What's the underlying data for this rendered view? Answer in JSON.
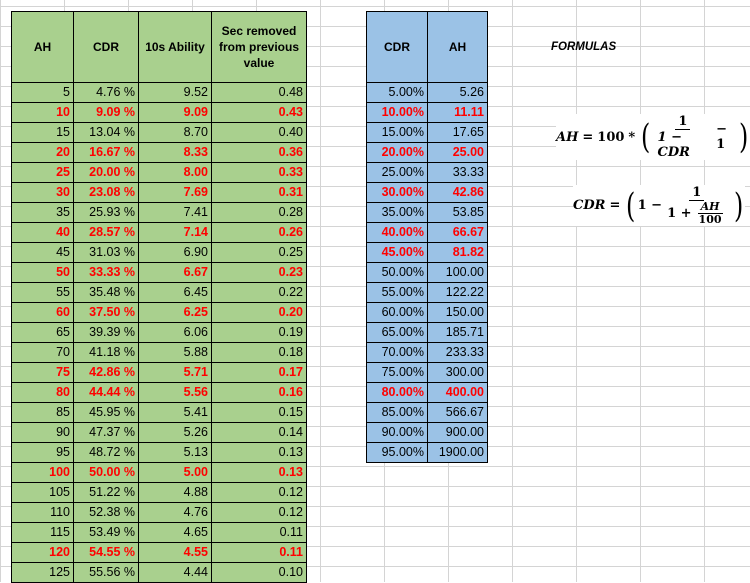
{
  "left_table": {
    "headers": [
      "AH",
      "CDR",
      "10s Ability",
      "Sec removed from previous value"
    ],
    "rows": [
      {
        "ah": "5",
        "cdr": "4.76 %",
        "ability": "9.52",
        "sec": "0.48",
        "highlight": false
      },
      {
        "ah": "10",
        "cdr": "9.09 %",
        "ability": "9.09",
        "sec": "0.43",
        "highlight": true
      },
      {
        "ah": "15",
        "cdr": "13.04 %",
        "ability": "8.70",
        "sec": "0.40",
        "highlight": false
      },
      {
        "ah": "20",
        "cdr": "16.67 %",
        "ability": "8.33",
        "sec": "0.36",
        "highlight": true
      },
      {
        "ah": "25",
        "cdr": "20.00 %",
        "ability": "8.00",
        "sec": "0.33",
        "highlight": true
      },
      {
        "ah": "30",
        "cdr": "23.08 %",
        "ability": "7.69",
        "sec": "0.31",
        "highlight": true
      },
      {
        "ah": "35",
        "cdr": "25.93 %",
        "ability": "7.41",
        "sec": "0.28",
        "highlight": false
      },
      {
        "ah": "40",
        "cdr": "28.57 %",
        "ability": "7.14",
        "sec": "0.26",
        "highlight": true
      },
      {
        "ah": "45",
        "cdr": "31.03 %",
        "ability": "6.90",
        "sec": "0.25",
        "highlight": false
      },
      {
        "ah": "50",
        "cdr": "33.33 %",
        "ability": "6.67",
        "sec": "0.23",
        "highlight": true
      },
      {
        "ah": "55",
        "cdr": "35.48 %",
        "ability": "6.45",
        "sec": "0.22",
        "highlight": false
      },
      {
        "ah": "60",
        "cdr": "37.50 %",
        "ability": "6.25",
        "sec": "0.20",
        "highlight": true
      },
      {
        "ah": "65",
        "cdr": "39.39 %",
        "ability": "6.06",
        "sec": "0.19",
        "highlight": false
      },
      {
        "ah": "70",
        "cdr": "41.18 %",
        "ability": "5.88",
        "sec": "0.18",
        "highlight": false
      },
      {
        "ah": "75",
        "cdr": "42.86 %",
        "ability": "5.71",
        "sec": "0.17",
        "highlight": true
      },
      {
        "ah": "80",
        "cdr": "44.44 %",
        "ability": "5.56",
        "sec": "0.16",
        "highlight": true
      },
      {
        "ah": "85",
        "cdr": "45.95 %",
        "ability": "5.41",
        "sec": "0.15",
        "highlight": false
      },
      {
        "ah": "90",
        "cdr": "47.37 %",
        "ability": "5.26",
        "sec": "0.14",
        "highlight": false
      },
      {
        "ah": "95",
        "cdr": "48.72 %",
        "ability": "5.13",
        "sec": "0.13",
        "highlight": false
      },
      {
        "ah": "100",
        "cdr": "50.00 %",
        "ability": "5.00",
        "sec": "0.13",
        "highlight": true
      },
      {
        "ah": "105",
        "cdr": "51.22 %",
        "ability": "4.88",
        "sec": "0.12",
        "highlight": false
      },
      {
        "ah": "110",
        "cdr": "52.38 %",
        "ability": "4.76",
        "sec": "0.12",
        "highlight": false
      },
      {
        "ah": "115",
        "cdr": "53.49 %",
        "ability": "4.65",
        "sec": "0.11",
        "highlight": false
      },
      {
        "ah": "120",
        "cdr": "54.55 %",
        "ability": "4.55",
        "sec": "0.11",
        "highlight": true
      },
      {
        "ah": "125",
        "cdr": "55.56 %",
        "ability": "4.44",
        "sec": "0.10",
        "highlight": false
      }
    ]
  },
  "right_table": {
    "headers": [
      "CDR",
      "AH"
    ],
    "rows": [
      {
        "cdr": "5.00%",
        "ah": "5.26",
        "highlight": false
      },
      {
        "cdr": "10.00%",
        "ah": "11.11",
        "highlight": true
      },
      {
        "cdr": "15.00%",
        "ah": "17.65",
        "highlight": false
      },
      {
        "cdr": "20.00%",
        "ah": "25.00",
        "highlight": true
      },
      {
        "cdr": "25.00%",
        "ah": "33.33",
        "highlight": false
      },
      {
        "cdr": "30.00%",
        "ah": "42.86",
        "highlight": true
      },
      {
        "cdr": "35.00%",
        "ah": "53.85",
        "highlight": false
      },
      {
        "cdr": "40.00%",
        "ah": "66.67",
        "highlight": true
      },
      {
        "cdr": "45.00%",
        "ah": "81.82",
        "highlight": true
      },
      {
        "cdr": "50.00%",
        "ah": "100.00",
        "highlight": false
      },
      {
        "cdr": "55.00%",
        "ah": "122.22",
        "highlight": false
      },
      {
        "cdr": "60.00%",
        "ah": "150.00",
        "highlight": false
      },
      {
        "cdr": "65.00%",
        "ah": "185.71",
        "highlight": false
      },
      {
        "cdr": "70.00%",
        "ah": "233.33",
        "highlight": false
      },
      {
        "cdr": "75.00%",
        "ah": "300.00",
        "highlight": false
      },
      {
        "cdr": "80.00%",
        "ah": "400.00",
        "highlight": true
      },
      {
        "cdr": "85.00%",
        "ah": "566.67",
        "highlight": false
      },
      {
        "cdr": "90.00%",
        "ah": "900.00",
        "highlight": false
      },
      {
        "cdr": "95.00%",
        "ah": "1900.00",
        "highlight": false
      }
    ]
  },
  "formulas": {
    "label": "FORMULAS",
    "ah_formula": {
      "lhs": "AH",
      "eq": "=",
      "coef": "100",
      "mul": "*",
      "num": "1",
      "den": "1 − CDR",
      "tail": "− 1"
    },
    "cdr_formula": {
      "lhs": "CDR",
      "eq": "=",
      "lead": "1 −",
      "num": "1",
      "den_lead": "1 +",
      "inner_num": "AH",
      "inner_den": "100"
    }
  },
  "colors": {
    "left_fill": "#a9d08e",
    "right_fill": "#9bc2e6",
    "highlight_text": "#ff0000",
    "grid_line": "#d4d4d4"
  }
}
